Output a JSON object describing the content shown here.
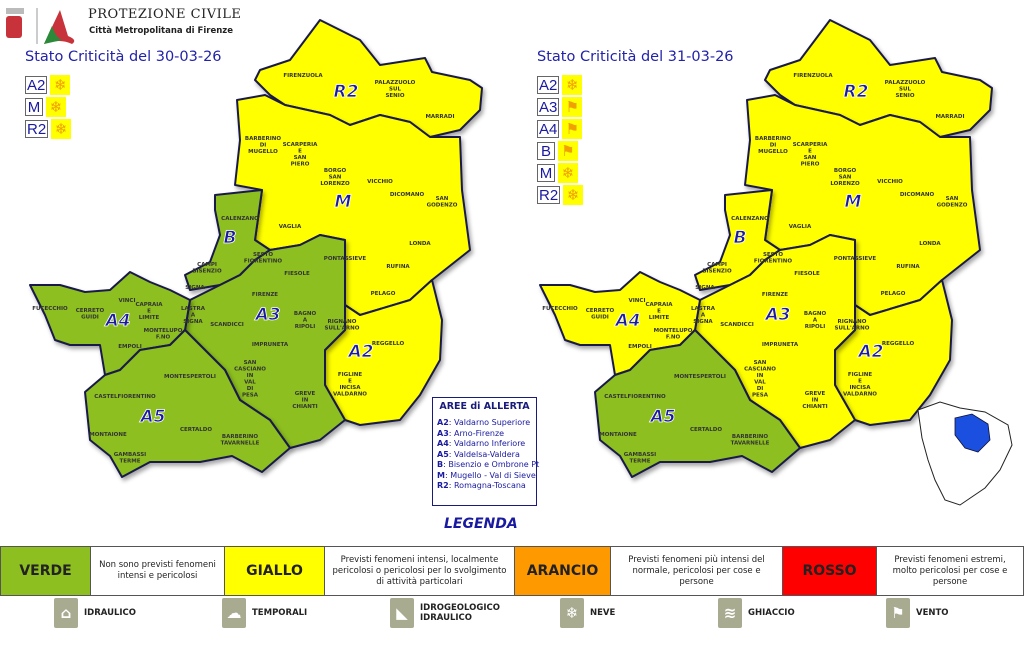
{
  "header": {
    "title": "PROTEZIONE CIVILE",
    "subtitle": "Città Metropolitana di Firenze"
  },
  "colors": {
    "verde": "#8cbf1f",
    "giallo": "#ffff00",
    "arancio": "#ff9900",
    "rosso": "#ff0000",
    "border": "#1a1a4a",
    "inset_blue": "#1a4fe0"
  },
  "maps": [
    {
      "title": "Stato Criticità del 30-03-26",
      "alerts": [
        {
          "zone": "A2",
          "icon": "snowflake-icon"
        },
        {
          "zone": "M",
          "icon": "snowflake-icon"
        },
        {
          "zone": "R2",
          "icon": "snowflake-icon"
        }
      ],
      "zone_levels": {
        "R2": "giallo",
        "M": "giallo",
        "A2": "giallo",
        "B": "verde",
        "A3": "verde",
        "A4": "verde",
        "A5": "verde"
      }
    },
    {
      "title": "Stato Criticità del 31-03-26",
      "alerts": [
        {
          "zone": "A2",
          "icon": "snowflake-icon"
        },
        {
          "zone": "A3",
          "icon": "windsock-icon"
        },
        {
          "zone": "A4",
          "icon": "windsock-icon"
        },
        {
          "zone": "B",
          "icon": "windsock-icon"
        },
        {
          "zone": "M",
          "icon": "snowflake-icon"
        },
        {
          "zone": "R2",
          "icon": "snowflake-icon"
        }
      ],
      "zone_levels": {
        "R2": "giallo",
        "M": "giallo",
        "A2": "giallo",
        "B": "giallo",
        "A3": "giallo",
        "A4": "giallo",
        "A5": "verde"
      }
    }
  ],
  "zones": [
    "R2",
    "M",
    "B",
    "A2",
    "A3",
    "A4",
    "A5"
  ],
  "municipalities": [
    "FIRENZUOLA",
    "PALAZZUOLO SUL SENIO",
    "MARRADI",
    "BARBERINO DI MUGELLO",
    "SCARPERIA E SAN PIERO",
    "BORGO SAN LORENZO",
    "VICCHIO",
    "DICOMANO",
    "SAN GODENZO",
    "VAGLIA",
    "LONDA",
    "CALENZANO",
    "SESTO FIORENTINO",
    "PONTASSIEVE",
    "RUFINA",
    "PELAGO",
    "FIESOLE",
    "FIRENZE",
    "CAMPI BISENZIO",
    "SIGNA",
    "LASTRA A SIGNA",
    "SCANDICCI",
    "BAGNO A RIPOLI",
    "RIGNANO SULL'ARNO",
    "REGGELLO",
    "IMPRUNETA",
    "SAN CASCIANO IN VAL DI PESA",
    "GREVE IN CHIANTI",
    "FIGLINE E INCISA VALDARNO",
    "FUCECCHIO",
    "CERRETO GUIDI",
    "VINCI",
    "CAPRAIA E LIMITE",
    "MONTELUPO F.NO",
    "EMPOLI",
    "MONTESPERTOLI",
    "CASTELFIORENTINO",
    "MONTAIONE",
    "CERTALDO",
    "GAMBASSI TERME",
    "BARBERINO TAVARNELLE"
  ],
  "aree": {
    "title": "AREE di ALLERTA",
    "items": [
      {
        "code": "A2",
        "name": ": Valdarno Superiore"
      },
      {
        "code": "A3",
        "name": ": Arno-Firenze"
      },
      {
        "code": "A4",
        "name": ": Valdarno Inferiore"
      },
      {
        "code": "A5",
        "name": ": Valdelsa-Valdera"
      },
      {
        "code": "B",
        "name": ": Bisenzio e Ombrone Pt"
      },
      {
        "code": "M",
        "name": ": Mugello - Val di Sieve"
      },
      {
        "code": "R2",
        "name": ": Romagna-Toscana"
      }
    ]
  },
  "legenda": "LEGENDA",
  "scale": [
    {
      "level": "VERDE",
      "desc": "Non sono previsti fenomeni intensi e pericolosi",
      "color": "#8cbf1f"
    },
    {
      "level": "GIALLO",
      "desc": "Previsti fenomeni intensi, localmente pericolosi o pericolosi per lo svolgimento di attività particolari",
      "color": "#ffff00"
    },
    {
      "level": "ARANCIO",
      "desc": "Previsti fenomeni più intensi del normale, pericolosi per cose e persone",
      "color": "#ff9900"
    },
    {
      "level": "ROSSO",
      "desc": "Previsti fenomeni estremi, molto pericolosi per cose e persone",
      "color": "#ff0000"
    }
  ],
  "hazards": [
    {
      "label": "IDRAULICO",
      "icon": "flood-house-icon"
    },
    {
      "label": "TEMPORALI",
      "icon": "storm-icon"
    },
    {
      "label": "IDROGEOLOGICO IDRAULICO",
      "icon": "landslide-icon"
    },
    {
      "label": "NEVE",
      "icon": "snowflake-icon"
    },
    {
      "label": "GHIACCIO",
      "icon": "ice-car-icon"
    },
    {
      "label": "VENTO",
      "icon": "windsock-icon"
    }
  ]
}
